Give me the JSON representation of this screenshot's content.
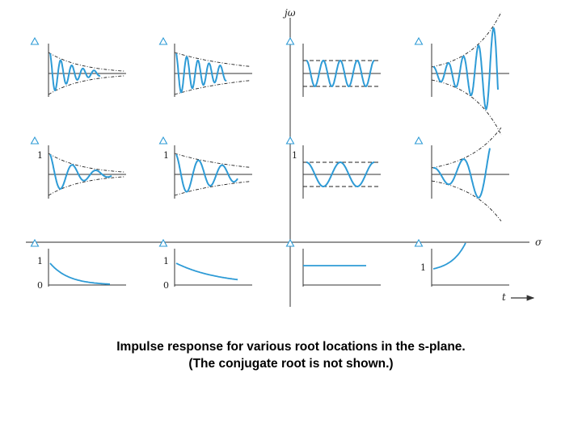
{
  "caption": {
    "line1": "Impulse response for various root locations in the s-plane.",
    "line2": "(The conjugate root is not shown.)"
  },
  "axes": {
    "imag_label": "jω",
    "real_label": "σ",
    "time_label": "t"
  },
  "colors": {
    "curve": "#2e9bd6",
    "axis": "#333333",
    "envelope": "#222222",
    "root_marker": "#2e9bd6"
  },
  "root_marker": "triangle",
  "panels": [
    {
      "row": "complex-high-freq",
      "col": "lhp-far",
      "kind": "decaying-oscillation",
      "decay": "fast",
      "tick": ""
    },
    {
      "row": "complex-high-freq",
      "col": "lhp-near",
      "kind": "decaying-oscillation",
      "decay": "slow",
      "tick": ""
    },
    {
      "row": "complex-high-freq",
      "col": "imag-axis",
      "kind": "sustained-oscillation",
      "tick": ""
    },
    {
      "row": "complex-high-freq",
      "col": "rhp",
      "kind": "growing-oscillation",
      "tick": ""
    },
    {
      "row": "complex-low-freq",
      "col": "lhp-far",
      "kind": "decaying-oscillation",
      "decay": "fast",
      "tick": "1"
    },
    {
      "row": "complex-low-freq",
      "col": "lhp-near",
      "kind": "decaying-oscillation",
      "decay": "slow",
      "tick": "1"
    },
    {
      "row": "complex-low-freq",
      "col": "imag-axis",
      "kind": "sustained-oscillation",
      "tick": "1"
    },
    {
      "row": "complex-low-freq",
      "col": "rhp",
      "kind": "growing-oscillation",
      "tick": ""
    },
    {
      "row": "real-axis",
      "col": "lhp-far",
      "kind": "decaying-exponential",
      "decay": "fast",
      "tick": "1",
      "origin": "0"
    },
    {
      "row": "real-axis",
      "col": "lhp-near",
      "kind": "decaying-exponential",
      "decay": "slow",
      "tick": "1",
      "origin": "0"
    },
    {
      "row": "real-axis",
      "col": "origin",
      "kind": "step",
      "tick": ""
    },
    {
      "row": "real-axis",
      "col": "rhp",
      "kind": "growing-exponential",
      "tick": "1"
    }
  ]
}
